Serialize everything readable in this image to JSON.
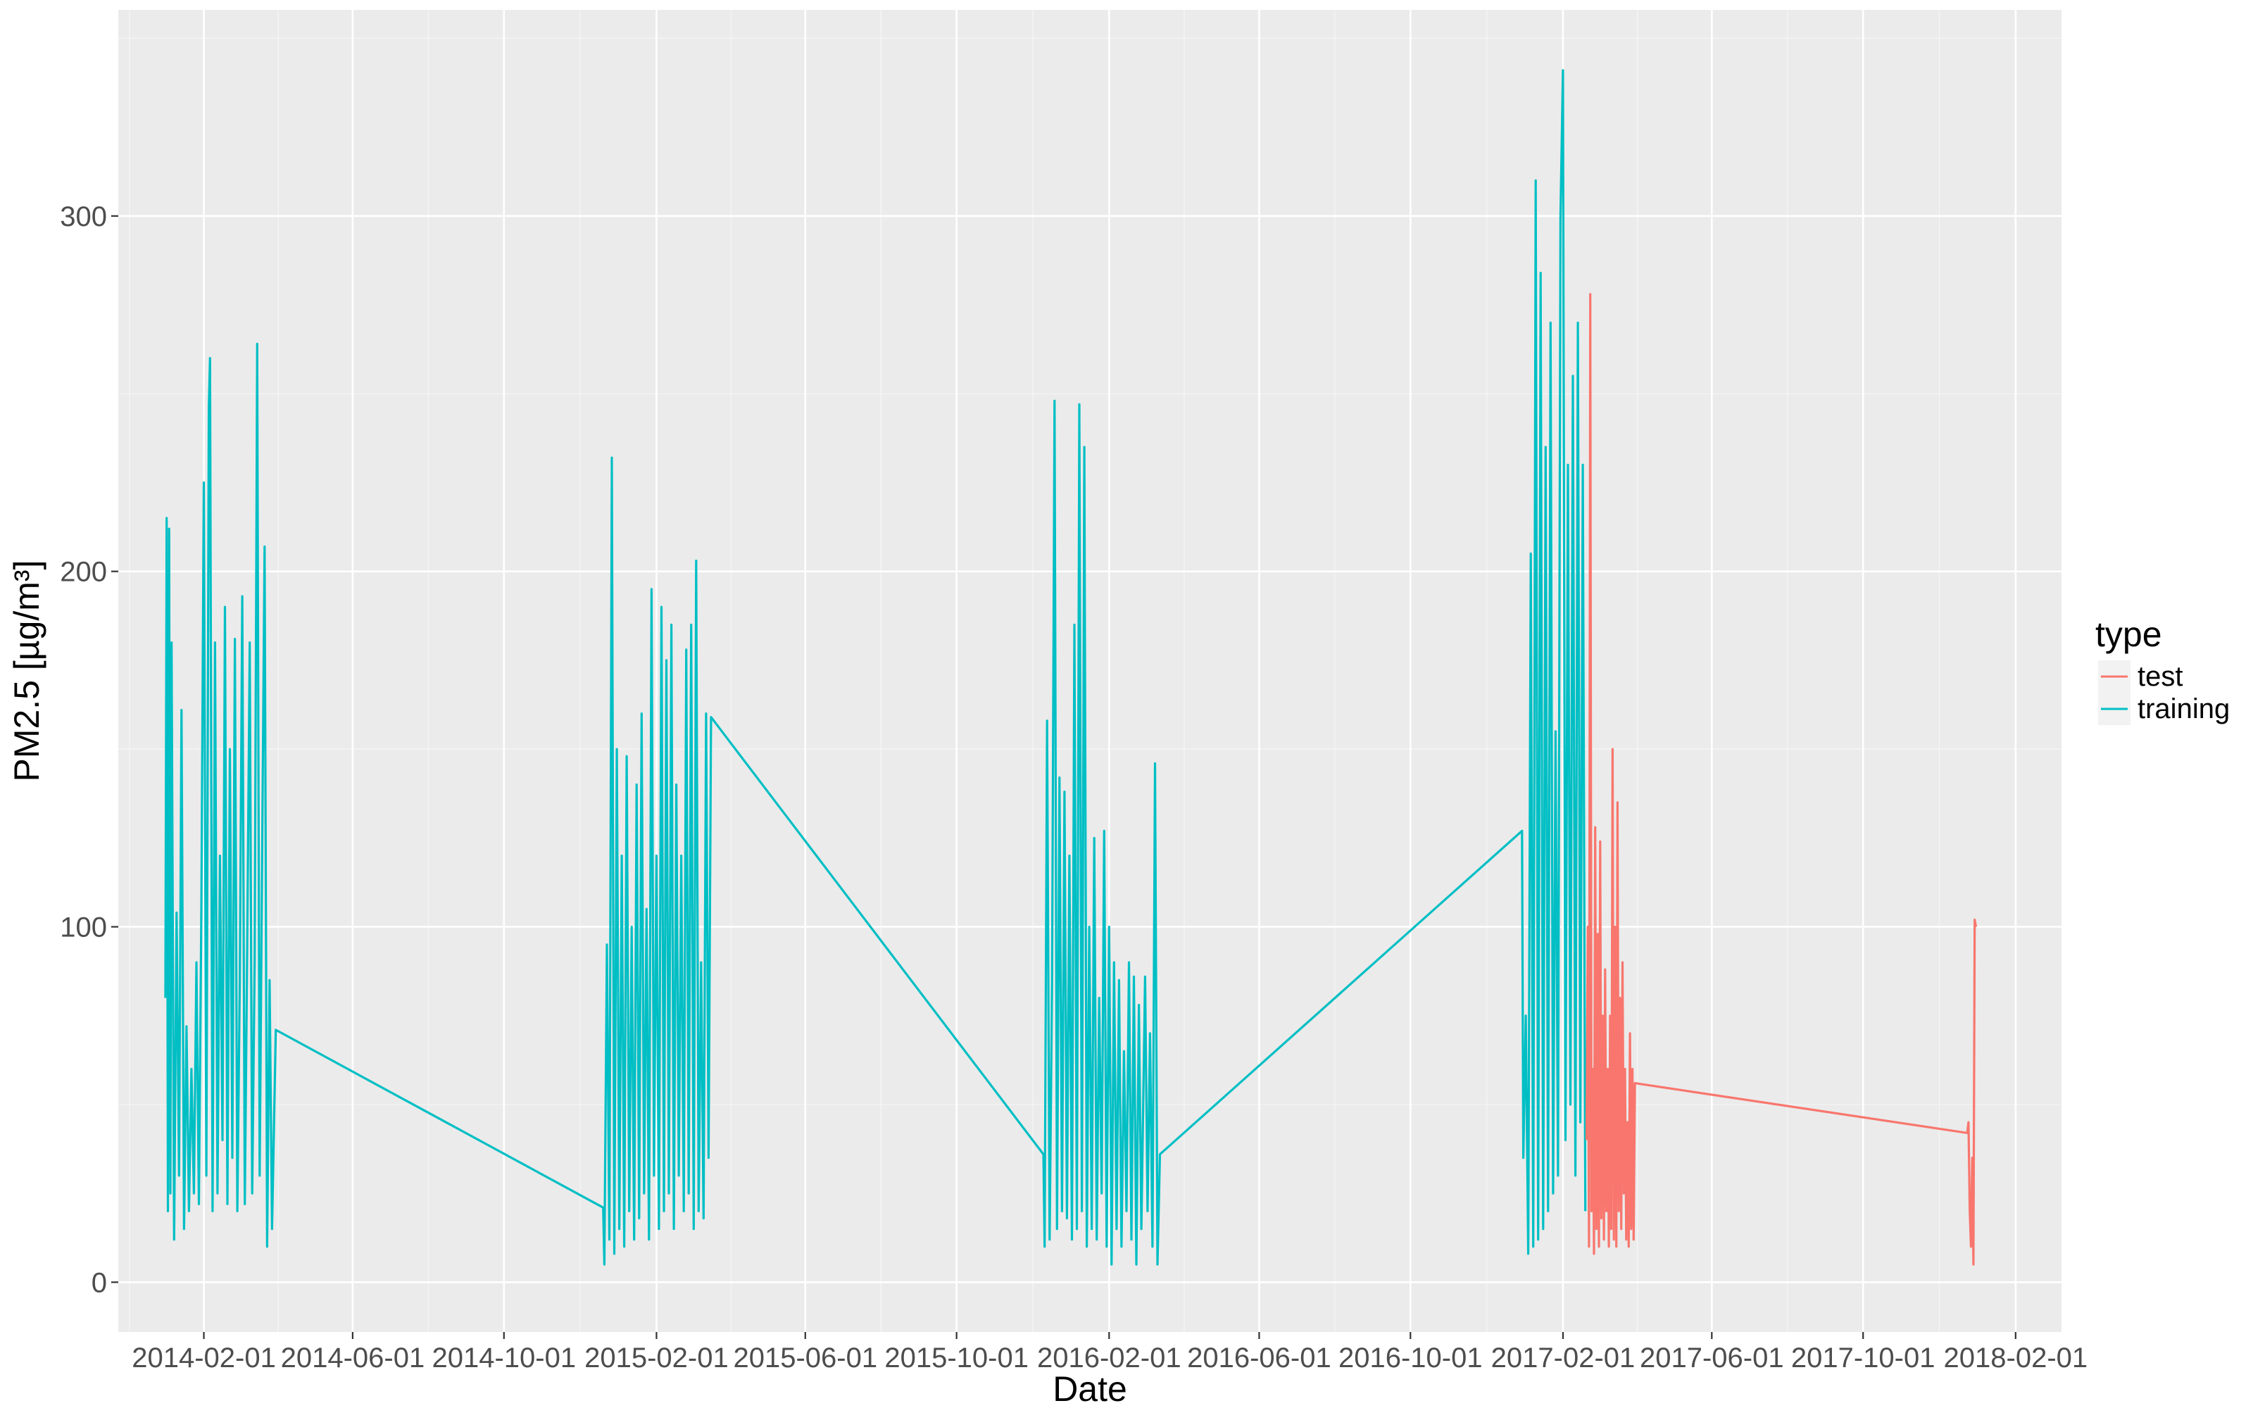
{
  "chart_data": {
    "type": "line",
    "title": "",
    "xlabel": "Date",
    "ylabel": "PM2.5 [µg/m³]",
    "x_type": "date",
    "xlim": [
      "2013-11-24",
      "2018-03-10"
    ],
    "ylim": [
      -14,
      358
    ],
    "x_ticks": [
      "2014-02-01",
      "2014-06-01",
      "2014-10-01",
      "2015-02-01",
      "2015-06-01",
      "2015-10-01",
      "2016-02-01",
      "2016-06-01",
      "2016-10-01",
      "2017-02-01",
      "2017-06-01",
      "2017-10-01",
      "2018-02-01"
    ],
    "y_ticks": [
      0,
      100,
      200,
      300
    ],
    "grid": true,
    "legend": {
      "title": "type",
      "position": "right",
      "entries": [
        {
          "label": "test",
          "color": "#F8766D"
        },
        {
          "label": "training",
          "color": "#00BFC4"
        }
      ]
    },
    "panel_background": "#EBEBEB",
    "series": [
      {
        "name": "training",
        "color": "#00BFC4",
        "segments": [
          {
            "x": [
              "2014-01-01",
              "2014-01-02",
              "2014-01-03",
              "2014-01-04",
              "2014-01-05",
              "2014-01-06",
              "2014-01-08",
              "2014-01-10",
              "2014-01-12",
              "2014-01-14",
              "2014-01-16",
              "2014-01-18",
              "2014-01-20",
              "2014-01-22",
              "2014-01-24",
              "2014-01-26",
              "2014-01-28",
              "2014-01-30",
              "2014-02-01",
              "2014-02-03",
              "2014-02-05",
              "2014-02-06",
              "2014-02-08",
              "2014-02-10",
              "2014-02-12",
              "2014-02-14",
              "2014-02-16",
              "2014-02-18",
              "2014-02-20",
              "2014-02-22",
              "2014-02-24",
              "2014-02-26",
              "2014-02-28",
              "2014-03-02",
              "2014-03-04",
              "2014-03-06",
              "2014-03-08",
              "2014-03-10",
              "2014-03-12",
              "2014-03-14",
              "2014-03-16",
              "2014-03-18",
              "2014-03-20",
              "2014-03-22",
              "2014-03-24",
              "2014-03-26",
              "2014-03-28",
              "2014-03-31"
            ],
            "y": [
              80,
              215,
              20,
              212,
              25,
              180,
              12,
              104,
              30,
              161,
              15,
              72,
              20,
              60,
              25,
              90,
              22,
              105,
              225,
              30,
              246,
              260,
              20,
              180,
              25,
              120,
              40,
              190,
              22,
              150,
              35,
              181,
              20,
              85,
              193,
              22,
              96,
              180,
              25,
              90,
              264,
              30,
              120,
              207,
              10,
              85,
              15,
              71
            ]
          },
          {
            "x": [
              "2014-12-20",
              "2014-12-21",
              "2014-12-23",
              "2014-12-25",
              "2014-12-27",
              "2014-12-29",
              "2014-12-31",
              "2015-01-02",
              "2015-01-04",
              "2015-01-06",
              "2015-01-08",
              "2015-01-10",
              "2015-01-12",
              "2015-01-14",
              "2015-01-16",
              "2015-01-18",
              "2015-01-20",
              "2015-01-22",
              "2015-01-24",
              "2015-01-26",
              "2015-01-28",
              "2015-01-30",
              "2015-02-01",
              "2015-02-03",
              "2015-02-05",
              "2015-02-07",
              "2015-02-09",
              "2015-02-11",
              "2015-02-13",
              "2015-02-15",
              "2015-02-17",
              "2015-02-19",
              "2015-02-21",
              "2015-02-23",
              "2015-02-25",
              "2015-02-27",
              "2015-03-01",
              "2015-03-03",
              "2015-03-05",
              "2015-03-07",
              "2015-03-09",
              "2015-03-11",
              "2015-03-13",
              "2015-03-15",
              "2015-03-17"
            ],
            "y": [
              21,
              5,
              95,
              12,
              232,
              8,
              150,
              15,
              120,
              10,
              148,
              20,
              100,
              12,
              140,
              18,
              160,
              25,
              105,
              12,
              195,
              30,
              120,
              15,
              190,
              20,
              175,
              25,
              185,
              15,
              140,
              30,
              120,
              20,
              178,
              25,
              185,
              15,
              203,
              20,
              90,
              18,
              160,
              35,
              159
            ]
          },
          {
            "x": [
              "2015-12-10",
              "2015-12-11",
              "2015-12-13",
              "2015-12-15",
              "2015-12-17",
              "2015-12-19",
              "2015-12-21",
              "2015-12-23",
              "2015-12-25",
              "2015-12-27",
              "2015-12-29",
              "2015-12-31",
              "2016-01-02",
              "2016-01-04",
              "2016-01-06",
              "2016-01-08",
              "2016-01-10",
              "2016-01-12",
              "2016-01-14",
              "2016-01-16",
              "2016-01-18",
              "2016-01-20",
              "2016-01-22",
              "2016-01-24",
              "2016-01-26",
              "2016-01-28",
              "2016-01-30",
              "2016-02-01",
              "2016-02-03",
              "2016-02-05",
              "2016-02-07",
              "2016-02-09",
              "2016-02-11",
              "2016-02-13",
              "2016-02-15",
              "2016-02-17",
              "2016-02-19",
              "2016-02-21",
              "2016-02-23",
              "2016-02-25",
              "2016-02-27",
              "2016-03-01",
              "2016-03-03",
              "2016-03-05",
              "2016-03-07",
              "2016-03-09",
              "2016-03-11",
              "2016-03-13"
            ],
            "y": [
              36,
              10,
              158,
              12,
              85,
              248,
              15,
              142,
              20,
              138,
              18,
              120,
              12,
              185,
              15,
              247,
              20,
              235,
              10,
              100,
              15,
              125,
              12,
              80,
              25,
              127,
              10,
              100,
              5,
              90,
              15,
              85,
              10,
              65,
              20,
              90,
              12,
              86,
              5,
              78,
              15,
              86,
              20,
              70,
              10,
              146,
              5,
              36
            ]
          },
          {
            "x": [
              "2016-12-30",
              "2016-12-31",
              "2017-01-02",
              "2017-01-04",
              "2017-01-06",
              "2017-01-08",
              "2017-01-10",
              "2017-01-12",
              "2017-01-14",
              "2017-01-16",
              "2017-01-18",
              "2017-01-20",
              "2017-01-22",
              "2017-01-24",
              "2017-01-26",
              "2017-01-28",
              "2017-01-30",
              "2017-02-01",
              "2017-02-03",
              "2017-02-05",
              "2017-02-07",
              "2017-02-09",
              "2017-02-11",
              "2017-02-13",
              "2017-02-15",
              "2017-02-17",
              "2017-02-19"
            ],
            "y": [
              127,
              35,
              75,
              8,
              205,
              10,
              310,
              12,
              284,
              15,
              235,
              20,
              270,
              25,
              155,
              30,
              300,
              341,
              40,
              230,
              50,
              255,
              30,
              270,
              45,
              230,
              20
            ]
          }
        ]
      },
      {
        "name": "test",
        "color": "#F8766D",
        "segments": [
          {
            "x": [
              "2017-02-20",
              "2017-02-21",
              "2017-02-22",
              "2017-02-23",
              "2017-02-24",
              "2017-02-25",
              "2017-02-26",
              "2017-02-27",
              "2017-02-28",
              "2017-03-01",
              "2017-03-02",
              "2017-03-03",
              "2017-03-04",
              "2017-03-05",
              "2017-03-06",
              "2017-03-07",
              "2017-03-08",
              "2017-03-09",
              "2017-03-10",
              "2017-03-11",
              "2017-03-12",
              "2017-03-13",
              "2017-03-14",
              "2017-03-15",
              "2017-03-16",
              "2017-03-17",
              "2017-03-18",
              "2017-03-19",
              "2017-03-20",
              "2017-03-21",
              "2017-03-22",
              "2017-03-23",
              "2017-03-24",
              "2017-03-25",
              "2017-03-26",
              "2017-03-27",
              "2017-03-28",
              "2017-03-29",
              "2017-03-30",
              "2017-03-31",
              "2017-12-24",
              "2017-12-25",
              "2017-12-26",
              "2017-12-27",
              "2017-12-28",
              "2017-12-29",
              "2017-12-30",
              "2017-12-31"
            ],
            "y": [
              40,
              100,
              10,
              278,
              20,
              60,
              8,
              128,
              15,
              98,
              10,
              124,
              18,
              75,
              12,
              88,
              20,
              60,
              10,
              75,
              15,
              150,
              12,
              100,
              10,
              135,
              20,
              80,
              15,
              90,
              25,
              60,
              12,
              45,
              10,
              70,
              15,
              60,
              12,
              56,
              42,
              45,
              20,
              10,
              35,
              5,
              102,
              100
            ]
          }
        ]
      }
    ]
  }
}
